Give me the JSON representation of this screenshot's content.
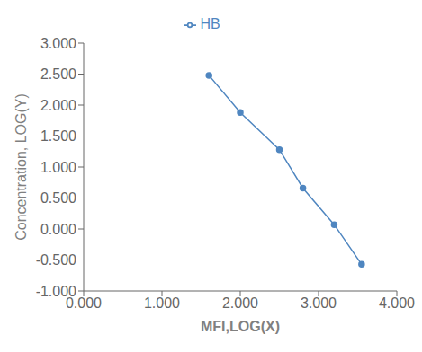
{
  "chart_data": {
    "type": "line",
    "x": [
      1.6,
      2.0,
      2.5,
      2.8,
      3.2,
      3.55
    ],
    "series": [
      {
        "name": "HB",
        "color": "#4f86c0",
        "marker": "o",
        "values": [
          2.48,
          1.88,
          1.28,
          0.66,
          0.07,
          -0.57
        ]
      }
    ],
    "xlabel": "MFI,LOG(X)",
    "ylabel": "Concentration, LOG(Y)",
    "xlim": [
      0.0,
      4.0
    ],
    "ylim": [
      -1.0,
      3.0
    ],
    "xticks": [
      {
        "value": 0.0,
        "label": "0.000"
      },
      {
        "value": 1.0,
        "label": "1.000"
      },
      {
        "value": 2.0,
        "label": "2.000"
      },
      {
        "value": 3.0,
        "label": "3.000"
      },
      {
        "value": 4.0,
        "label": "4.000"
      }
    ],
    "yticks": [
      {
        "value": -1.0,
        "label": "-1.000"
      },
      {
        "value": -0.5,
        "label": "-0.500"
      },
      {
        "value": 0.0,
        "label": "0.000"
      },
      {
        "value": 0.5,
        "label": "0.500"
      },
      {
        "value": 1.0,
        "label": "1.000"
      },
      {
        "value": 1.5,
        "label": "1.500"
      },
      {
        "value": 2.0,
        "label": "2.000"
      },
      {
        "value": 2.5,
        "label": "2.500"
      },
      {
        "value": 3.0,
        "label": "3.000"
      }
    ],
    "legend": "top",
    "grid": false
  }
}
